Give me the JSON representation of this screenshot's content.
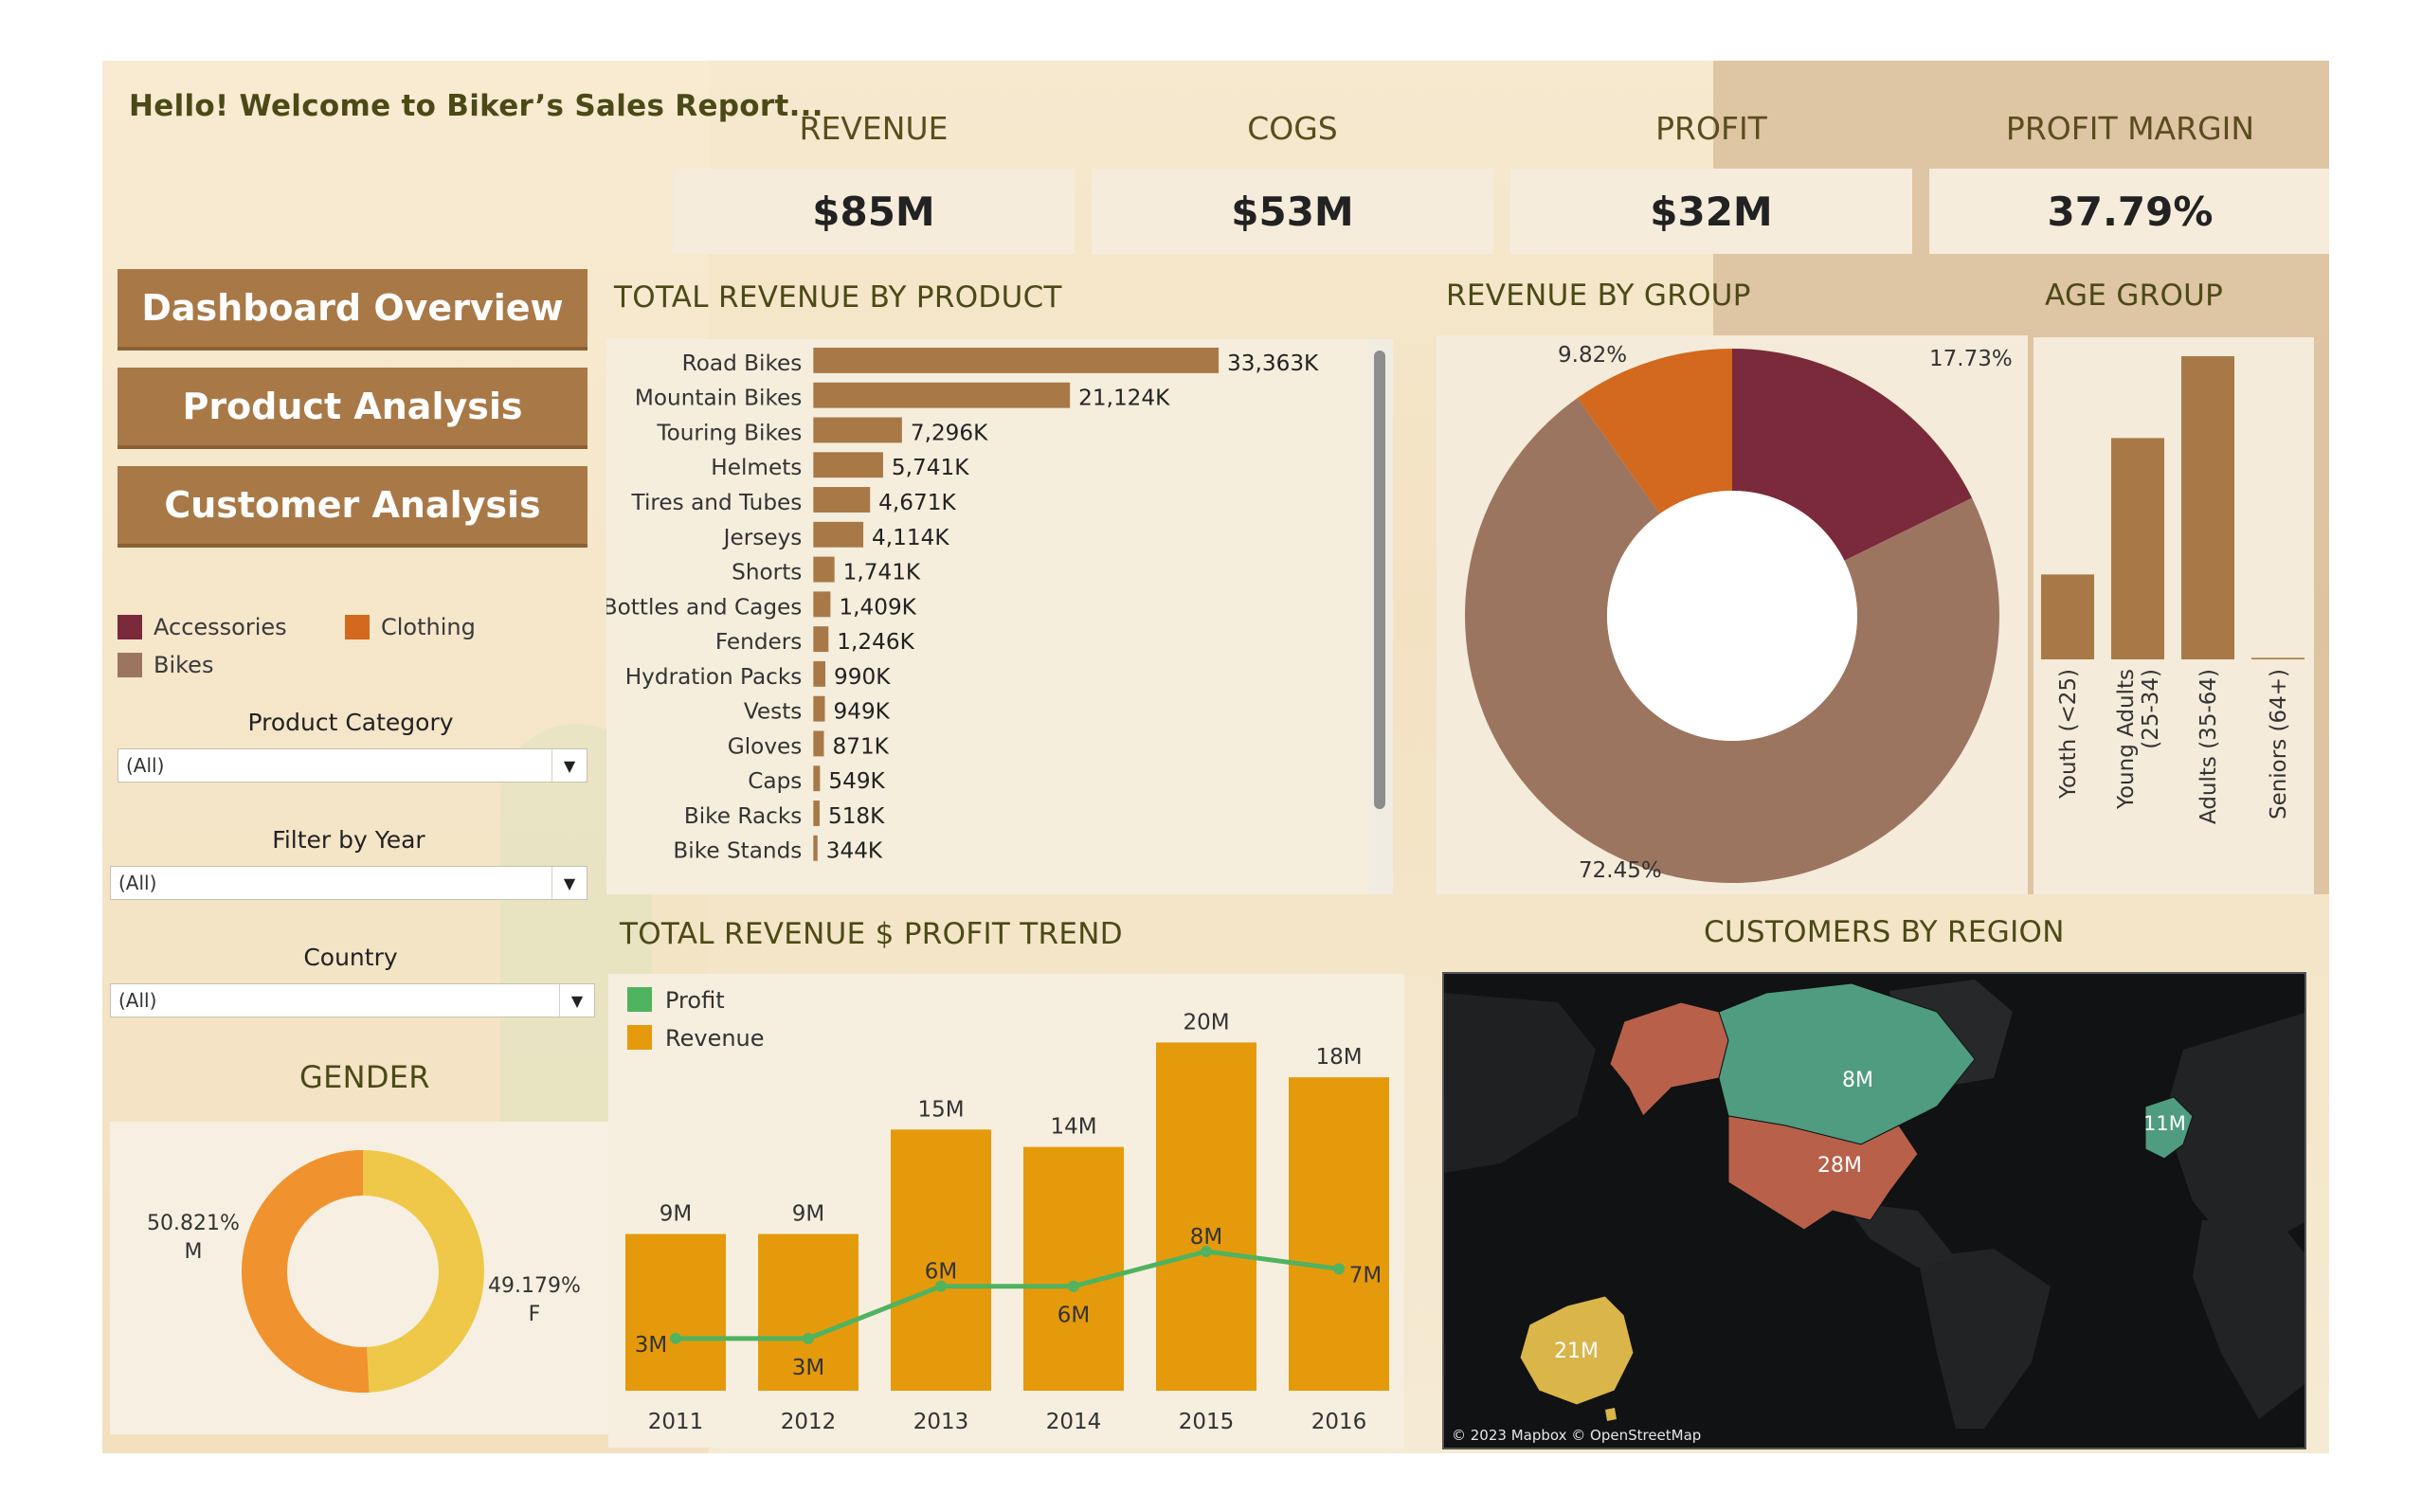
{
  "title": "Hello! Welcome to Biker’s Sales Report...",
  "kpis": [
    {
      "label": "REVENUE",
      "value": "$85M"
    },
    {
      "label": "COGS",
      "value": "$53M"
    },
    {
      "label": "PROFIT",
      "value": "$32M"
    },
    {
      "label": "PROFIT MARGIN",
      "value": "37.79%"
    }
  ],
  "nav": {
    "overview": "Dashboard Overview",
    "product": "Product Analysis",
    "customer": "Customer Analysis"
  },
  "legend": {
    "accessories": {
      "label": "Accessories",
      "color": "#7a2a3a"
    },
    "clothing": {
      "label": "Clothing",
      "color": "#d2691e"
    },
    "bikes": {
      "label": "Bikes",
      "color": "#9c7560"
    }
  },
  "filters": {
    "category": {
      "label": "Product Category",
      "value": "(All)"
    },
    "year": {
      "label": "Filter by Year",
      "value": "(All)"
    },
    "country": {
      "label": "Country",
      "value": "(All)"
    }
  },
  "headings": {
    "product": "TOTAL REVENUE BY PRODUCT",
    "group": "REVENUE BY GROUP",
    "age": "AGE GROUP",
    "trend": "TOTAL REVENUE $ PROFIT TREND",
    "region": "CUSTOMERS BY REGION",
    "gender": "GENDER"
  },
  "chart_data": [
    {
      "type": "bar",
      "orientation": "horizontal",
      "categories": [
        "Road Bikes",
        "Mountain Bikes",
        "Touring Bikes",
        "Helmets",
        "Tires and Tubes",
        "Jerseys",
        "Shorts",
        "Bottles and Cages",
        "Fenders",
        "Hydration Packs",
        "Vests",
        "Gloves",
        "Caps",
        "Bike Racks",
        "Bike Stands"
      ],
      "values": [
        33363,
        21124,
        7296,
        5741,
        4671,
        4114,
        1741,
        1409,
        1246,
        990,
        949,
        871,
        549,
        518,
        344
      ],
      "value_labels": [
        "33,363K",
        "21,124K",
        "7,296K",
        "5,741K",
        "4,671K",
        "4,114K",
        "1,741K",
        "1,409K",
        "1,246K",
        "990K",
        "949K",
        "871K",
        "549K",
        "518K",
        "344K"
      ],
      "color": "#a87947"
    },
    {
      "type": "pie",
      "donut": true,
      "slices": [
        {
          "name": "Accessories",
          "value": 17.73,
          "label": "17.73%",
          "color": "#7a2a3a"
        },
        {
          "name": "Bikes",
          "value": 72.45,
          "label": "72.45%",
          "color": "#9c7560"
        },
        {
          "name": "Clothing",
          "value": 9.82,
          "label": "9.82%",
          "color": "#d2691e"
        }
      ]
    },
    {
      "type": "bar",
      "categories": [
        "Youth (<25)",
        "Young Adults (25-34)",
        "Adults (35-64)",
        "Seniors (64+)"
      ],
      "values": [
        0.28,
        0.73,
        1.0,
        0.005
      ],
      "color": "#a87947"
    },
    {
      "type": "bar",
      "x": [
        "2011",
        "2012",
        "2013",
        "2014",
        "2015",
        "2016"
      ],
      "series": [
        {
          "name": "Revenue",
          "values": [
            9,
            9,
            15,
            14,
            20,
            18
          ],
          "labels": [
            "9M",
            "9M",
            "15M",
            "14M",
            "20M",
            "18M"
          ],
          "color": "#e59a0c"
        },
        {
          "name": "Profit",
          "type": "line",
          "values": [
            3,
            3,
            6,
            6,
            8,
            7
          ],
          "labels": [
            "3M",
            "3M",
            "6M",
            "6M",
            "8M",
            "7M"
          ],
          "color": "#4fb360"
        }
      ],
      "ylim": [
        0,
        21
      ]
    },
    {
      "type": "pie",
      "donut": true,
      "slices": [
        {
          "name": "M",
          "value": 50.821,
          "label": "50.821%",
          "sub": "M",
          "color": "#f0922e"
        },
        {
          "name": "F",
          "value": 49.179,
          "label": "49.179%",
          "sub": "F",
          "color": "#efc84a"
        }
      ]
    }
  ],
  "map": {
    "regions": [
      {
        "name": "Canada",
        "label": "8M",
        "color": "#4f9c80"
      },
      {
        "name": "Alaska",
        "label": "",
        "color": "#b8604a"
      },
      {
        "name": "United States",
        "label": "28M",
        "color": "#b8604a"
      },
      {
        "name": "Europe",
        "label": "11M",
        "color": "#4f9c80"
      },
      {
        "name": "Australia",
        "label": "21M",
        "color": "#d9b54a"
      }
    ],
    "attribution": "© 2023 Mapbox © OpenStreetMap"
  }
}
